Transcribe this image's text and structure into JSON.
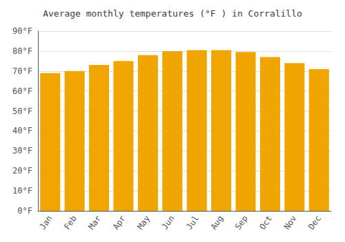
{
  "chart_data": {
    "type": "bar",
    "title": "Average monthly temperatures (°F ) in Corralillo",
    "categories": [
      "Jan",
      "Feb",
      "Mar",
      "Apr",
      "May",
      "Jun",
      "Jul",
      "Aug",
      "Sep",
      "Oct",
      "Nov",
      "Dec"
    ],
    "values": [
      69,
      70,
      73,
      75,
      78,
      80,
      80.5,
      80.5,
      79.5,
      77,
      74,
      71
    ],
    "color": "#F0A500",
    "ylim": [
      0,
      90
    ],
    "yticks": [
      {
        "value": 0,
        "label": "0°F"
      },
      {
        "value": 10,
        "label": "10°F"
      },
      {
        "value": 20,
        "label": "20°F"
      },
      {
        "value": 30,
        "label": "30°F"
      },
      {
        "value": 40,
        "label": "40°F"
      },
      {
        "value": 50,
        "label": "50°F"
      },
      {
        "value": 60,
        "label": "60°F"
      },
      {
        "value": 70,
        "label": "70°F"
      },
      {
        "value": 80,
        "label": "80°F"
      },
      {
        "value": 90,
        "label": "90°F"
      }
    ],
    "grid": true
  }
}
